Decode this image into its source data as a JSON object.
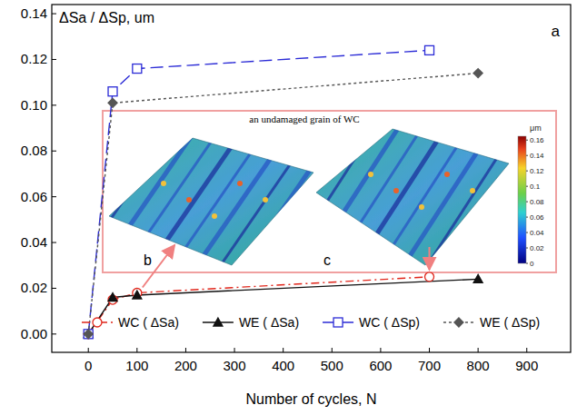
{
  "chart_data": {
    "type": "line",
    "title": "a",
    "y_label": "ΔSa / ΔSp, um",
    "x_label": "Number of cycles, N",
    "xlim": [
      -75,
      990
    ],
    "xticks": [
      0,
      100,
      200,
      300,
      400,
      500,
      600,
      700,
      800,
      900
    ],
    "ylim": [
      -0.008,
      0.144
    ],
    "yticks": [
      {
        "value": 0,
        "label": "0.00"
      },
      0.02,
      0.04,
      0.06,
      0.08,
      {
        "value": 0.1,
        "label": "0.10"
      },
      0.12,
      0.14
    ],
    "grid": false,
    "legend": "bottom",
    "series": [
      {
        "name": "WC ( ΔSa)",
        "color": "#e0261b",
        "marker": "circle",
        "line_style": "dashdot",
        "x": [
          0,
          50,
          100,
          700
        ],
        "values": [
          0,
          0.015,
          0.018,
          0.025
        ]
      },
      {
        "name": "WE ( ΔSa)",
        "color": "#111111",
        "marker": "triangle",
        "line_style": "solid",
        "x": [
          0,
          50,
          100,
          800
        ],
        "values": [
          0,
          0.016,
          0.017,
          0.024
        ]
      },
      {
        "name": "WC ( ΔSp)",
        "color": "#2b2bd6",
        "marker": "square",
        "line_style": "dashed",
        "x": [
          0,
          50,
          100,
          700
        ],
        "values": [
          0,
          0.106,
          0.116,
          0.124
        ]
      },
      {
        "name": "WE ( ΔSp)",
        "color": "#555555",
        "marker": "diamond",
        "line_style": "dotted",
        "x": [
          0,
          50,
          800
        ],
        "values": [
          0,
          0.101,
          0.114
        ]
      }
    ],
    "inset": {
      "title": "an undamaged grain of WC",
      "panels": [
        "b",
        "c"
      ],
      "colorbar": {
        "label": "μm",
        "range": [
          0,
          0.165
        ],
        "ticks": [
          0,
          0.02,
          0.04,
          0.06,
          0.08,
          0.1,
          0.12,
          0.14,
          0.16
        ]
      }
    }
  }
}
